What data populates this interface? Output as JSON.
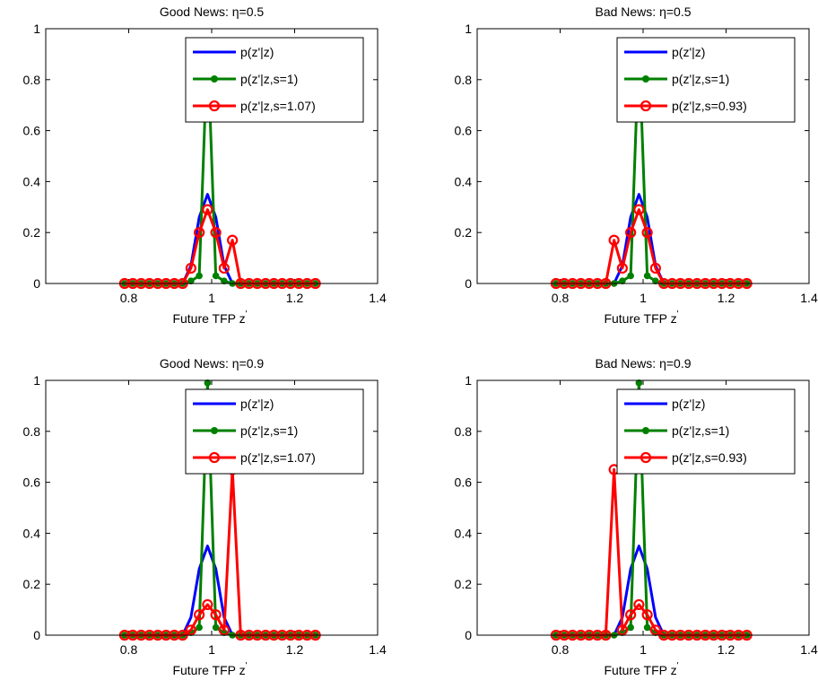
{
  "chart_data": [
    {
      "type": "line",
      "title": "Good News: η=0.5",
      "xlabel": "Future TFP z",
      "xlabel_prime": "'",
      "ylabel": "",
      "xlim": [
        0.6,
        1.4
      ],
      "ylim": [
        0,
        1
      ],
      "xticks": [
        "0.8",
        "1",
        "1.2",
        "1.4"
      ],
      "yticks": [
        "0",
        "0.2",
        "0.4",
        "0.6",
        "0.8",
        "1"
      ],
      "x": [
        0.79,
        0.81,
        0.83,
        0.85,
        0.87,
        0.89,
        0.91,
        0.93,
        0.95,
        0.97,
        0.99,
        1.01,
        1.03,
        1.05,
        1.07,
        1.09,
        1.11,
        1.13,
        1.15,
        1.17,
        1.19,
        1.21,
        1.23,
        1.25
      ],
      "series": [
        {
          "name": "p(z'|z)",
          "color": "#0000ff",
          "marker": "none",
          "values": [
            0,
            0,
            0,
            0,
            0,
            0,
            0,
            0,
            0.07,
            0.26,
            0.35,
            0.26,
            0.07,
            0,
            0,
            0,
            0,
            0,
            0,
            0,
            0,
            0,
            0,
            0
          ]
        },
        {
          "name": "p(z'|z,s=1)",
          "color": "#008000",
          "marker": "dot",
          "values": [
            0,
            0,
            0,
            0,
            0,
            0,
            0,
            0,
            0.01,
            0.03,
            0.94,
            0.03,
            0.01,
            0,
            0,
            0,
            0,
            0,
            0,
            0,
            0,
            0,
            0,
            0
          ]
        },
        {
          "name": "p(z'|z,s=1.07)",
          "color": "#ff0000",
          "marker": "circle",
          "values": [
            0,
            0,
            0,
            0,
            0,
            0,
            0,
            0,
            0.06,
            0.2,
            0.29,
            0.2,
            0.06,
            0.17,
            0,
            0,
            0,
            0,
            0,
            0,
            0,
            0,
            0,
            0
          ]
        }
      ]
    },
    {
      "type": "line",
      "title": "Bad News: η=0.5",
      "xlabel": "Future TFP z",
      "xlabel_prime": "'",
      "ylabel": "",
      "xlim": [
        0.6,
        1.4
      ],
      "ylim": [
        0,
        1
      ],
      "xticks": [
        "0.8",
        "1",
        "1.2",
        "1.4"
      ],
      "yticks": [
        "0",
        "0.2",
        "0.4",
        "0.6",
        "0.8",
        "1"
      ],
      "x": [
        0.79,
        0.81,
        0.83,
        0.85,
        0.87,
        0.89,
        0.91,
        0.93,
        0.95,
        0.97,
        0.99,
        1.01,
        1.03,
        1.05,
        1.07,
        1.09,
        1.11,
        1.13,
        1.15,
        1.17,
        1.19,
        1.21,
        1.23,
        1.25
      ],
      "series": [
        {
          "name": "p(z'|z)",
          "color": "#0000ff",
          "marker": "none",
          "values": [
            0,
            0,
            0,
            0,
            0,
            0,
            0,
            0,
            0.07,
            0.26,
            0.35,
            0.26,
            0.07,
            0,
            0,
            0,
            0,
            0,
            0,
            0,
            0,
            0,
            0,
            0
          ]
        },
        {
          "name": "p(z'|z,s=1)",
          "color": "#008000",
          "marker": "dot",
          "values": [
            0,
            0,
            0,
            0,
            0,
            0,
            0,
            0,
            0.01,
            0.03,
            0.94,
            0.03,
            0.01,
            0,
            0,
            0,
            0,
            0,
            0,
            0,
            0,
            0,
            0,
            0
          ]
        },
        {
          "name": "p(z'|z,s=0.93)",
          "color": "#ff0000",
          "marker": "circle",
          "values": [
            0,
            0,
            0,
            0,
            0,
            0,
            0,
            0.17,
            0.06,
            0.2,
            0.29,
            0.2,
            0.06,
            0,
            0,
            0,
            0,
            0,
            0,
            0,
            0,
            0,
            0,
            0
          ]
        }
      ]
    },
    {
      "type": "line",
      "title": "Good News: η=0.9",
      "xlabel": "Future TFP z",
      "xlabel_prime": "'",
      "ylabel": "",
      "xlim": [
        0.6,
        1.4
      ],
      "ylim": [
        0,
        1
      ],
      "xticks": [
        "0.8",
        "1",
        "1.2",
        "1.4"
      ],
      "yticks": [
        "0",
        "0.2",
        "0.4",
        "0.6",
        "0.8",
        "1"
      ],
      "x": [
        0.79,
        0.81,
        0.83,
        0.85,
        0.87,
        0.89,
        0.91,
        0.93,
        0.95,
        0.97,
        0.99,
        1.01,
        1.03,
        1.05,
        1.07,
        1.09,
        1.11,
        1.13,
        1.15,
        1.17,
        1.19,
        1.21,
        1.23,
        1.25
      ],
      "series": [
        {
          "name": "p(z'|z)",
          "color": "#0000ff",
          "marker": "none",
          "values": [
            0,
            0,
            0,
            0,
            0,
            0,
            0,
            0,
            0.07,
            0.26,
            0.35,
            0.26,
            0.07,
            0,
            0,
            0,
            0,
            0,
            0,
            0,
            0,
            0,
            0,
            0
          ]
        },
        {
          "name": "p(z'|z,s=1)",
          "color": "#008000",
          "marker": "dot",
          "values": [
            0,
            0,
            0,
            0,
            0,
            0,
            0,
            0,
            0.01,
            0.03,
            0.99,
            0.03,
            0.01,
            0,
            0,
            0,
            0,
            0,
            0,
            0,
            0,
            0,
            0,
            0
          ]
        },
        {
          "name": "p(z'|z,s=1.07)",
          "color": "#ff0000",
          "marker": "circle",
          "values": [
            0,
            0,
            0,
            0,
            0,
            0,
            0,
            0,
            0.02,
            0.08,
            0.12,
            0.08,
            0.02,
            0.65,
            0,
            0,
            0,
            0,
            0,
            0,
            0,
            0,
            0,
            0
          ]
        }
      ]
    },
    {
      "type": "line",
      "title": "Bad News: η=0.9",
      "xlabel": "Future TFP z",
      "xlabel_prime": "'",
      "ylabel": "",
      "xlim": [
        0.6,
        1.4
      ],
      "ylim": [
        0,
        1
      ],
      "xticks": [
        "0.8",
        "1",
        "1.2",
        "1.4"
      ],
      "yticks": [
        "0",
        "0.2",
        "0.4",
        "0.6",
        "0.8",
        "1"
      ],
      "x": [
        0.79,
        0.81,
        0.83,
        0.85,
        0.87,
        0.89,
        0.91,
        0.93,
        0.95,
        0.97,
        0.99,
        1.01,
        1.03,
        1.05,
        1.07,
        1.09,
        1.11,
        1.13,
        1.15,
        1.17,
        1.19,
        1.21,
        1.23,
        1.25
      ],
      "series": [
        {
          "name": "p(z'|z)",
          "color": "#0000ff",
          "marker": "none",
          "values": [
            0,
            0,
            0,
            0,
            0,
            0,
            0,
            0,
            0.07,
            0.26,
            0.35,
            0.26,
            0.07,
            0,
            0,
            0,
            0,
            0,
            0,
            0,
            0,
            0,
            0,
            0
          ]
        },
        {
          "name": "p(z'|z,s=1)",
          "color": "#008000",
          "marker": "dot",
          "values": [
            0,
            0,
            0,
            0,
            0,
            0,
            0,
            0,
            0.01,
            0.03,
            0.99,
            0.03,
            0.01,
            0,
            0,
            0,
            0,
            0,
            0,
            0,
            0,
            0,
            0,
            0
          ]
        },
        {
          "name": "p(z'|z,s=0.93)",
          "color": "#ff0000",
          "marker": "circle",
          "values": [
            0,
            0,
            0,
            0,
            0,
            0,
            0,
            0.65,
            0.02,
            0.08,
            0.12,
            0.08,
            0.02,
            0,
            0,
            0,
            0,
            0,
            0,
            0,
            0,
            0,
            0,
            0
          ]
        }
      ]
    }
  ]
}
